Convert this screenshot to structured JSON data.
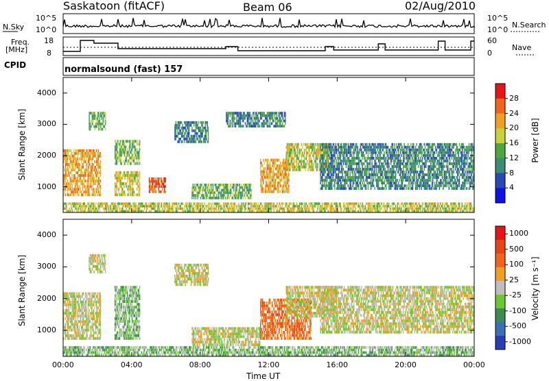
{
  "header": {
    "station": "Saskatoon (fitACF)",
    "beam": "Beam 06",
    "date": "02/Aug/2010"
  },
  "top_panel": {
    "left_label": "N.Sky",
    "right_label": "N.Search",
    "left_ticks": [
      "10^5",
      "10^0"
    ],
    "right_ticks": [
      "10^5",
      "10^0"
    ]
  },
  "freq_panel": {
    "left_label_line1": "Freq.",
    "left_label_line2": "[MHz]",
    "right_label": "Nave",
    "left_ticks": [
      "18",
      "8"
    ],
    "right_ticks": [
      "60",
      "0"
    ]
  },
  "cpid": {
    "label": "CPID",
    "text": "normalsound (fast) 157"
  },
  "x_axis": {
    "label": "Time UT",
    "ticks": [
      "00:00",
      "04:00",
      "08:00",
      "12:00",
      "16:00",
      "20:00",
      "00:00"
    ]
  },
  "chart_data": [
    {
      "type": "heatmap",
      "name": "power",
      "ylabel": "Slant Range [km]",
      "y_ticks": [
        "1000",
        "2000",
        "3000",
        "4000"
      ],
      "ylim": [
        180,
        4500
      ],
      "xlim_hours": [
        0,
        24
      ],
      "colorbar_label": "Power [dB]",
      "colorbar_ticks": [
        "4",
        "8",
        "12",
        "16",
        "20",
        "24",
        "28"
      ],
      "colorbar_colors": [
        "#0a14e6",
        "#2a49b8",
        "#3a8c74",
        "#4aa83c",
        "#c8d23c",
        "#f0a01e",
        "#f0641e",
        "#e61414"
      ],
      "echo_regions": [
        {
          "t0": 0.0,
          "t1": 2.2,
          "r0": 700,
          "r1": 2200,
          "level": 5
        },
        {
          "t0": 1.5,
          "t1": 2.5,
          "r0": 2800,
          "r1": 3400,
          "level": 3
        },
        {
          "t0": 3.0,
          "t1": 4.5,
          "r0": 1700,
          "r1": 2500,
          "level": 3
        },
        {
          "t0": 3.0,
          "t1": 4.5,
          "r0": 700,
          "r1": 1500,
          "level": 4
        },
        {
          "t0": 5.0,
          "t1": 6.0,
          "r0": 800,
          "r1": 1300,
          "level": 6
        },
        {
          "t0": 6.5,
          "t1": 8.5,
          "r0": 2400,
          "r1": 3100,
          "level": 2
        },
        {
          "t0": 7.5,
          "t1": 11.0,
          "r0": 600,
          "r1": 1100,
          "level": 3
        },
        {
          "t0": 9.5,
          "t1": 13.0,
          "r0": 2900,
          "r1": 3400,
          "level": 2
        },
        {
          "t0": 11.5,
          "t1": 13.2,
          "r0": 800,
          "r1": 1900,
          "level": 5
        },
        {
          "t0": 13.0,
          "t1": 15.5,
          "r0": 1500,
          "r1": 2400,
          "level": 4
        },
        {
          "t0": 15.0,
          "t1": 24.0,
          "r0": 900,
          "r1": 2400,
          "level": 2
        },
        {
          "t0": 0.0,
          "t1": 24.0,
          "r0": 180,
          "r1": 500,
          "level": 4
        }
      ]
    },
    {
      "type": "heatmap",
      "name": "velocity",
      "ylabel": "Slant Range [km]",
      "y_ticks": [
        "1000",
        "2000",
        "3000",
        "4000"
      ],
      "ylim": [
        180,
        4500
      ],
      "xlim_hours": [
        0,
        24
      ],
      "colorbar_label": "Velocity [m s⁻¹]",
      "colorbar_ticks": [
        "1000",
        "500",
        "100",
        "25",
        "-25",
        "-100",
        "-500",
        "-1000"
      ],
      "colorbar_colors": [
        "#2a3cb4",
        "#3c70b4",
        "#3c8c50",
        "#6cc832",
        "#bebebe",
        "#f0a01e",
        "#f0641e",
        "#e64614",
        "#e61414"
      ],
      "echo_regions": [
        {
          "t0": 0.0,
          "t1": 2.2,
          "r0": 700,
          "r1": 2200,
          "level": 4
        },
        {
          "t0": 1.5,
          "t1": 2.5,
          "r0": 2800,
          "r1": 3400,
          "level": 4
        },
        {
          "t0": 3.0,
          "t1": 4.5,
          "r0": 700,
          "r1": 2400,
          "level": 3
        },
        {
          "t0": 6.5,
          "t1": 8.5,
          "r0": 2400,
          "r1": 3100,
          "level": 4
        },
        {
          "t0": 7.5,
          "t1": 11.5,
          "r0": 500,
          "r1": 1100,
          "level": 4
        },
        {
          "t0": 11.5,
          "t1": 14.5,
          "r0": 700,
          "r1": 2000,
          "level": 6
        },
        {
          "t0": 13.0,
          "t1": 16.0,
          "r0": 1400,
          "r1": 2400,
          "level": 4
        },
        {
          "t0": 15.0,
          "t1": 24.0,
          "r0": 900,
          "r1": 2400,
          "level": 4
        },
        {
          "t0": 0.0,
          "t1": 24.0,
          "r0": 180,
          "r1": 500,
          "level": 3
        }
      ]
    }
  ]
}
